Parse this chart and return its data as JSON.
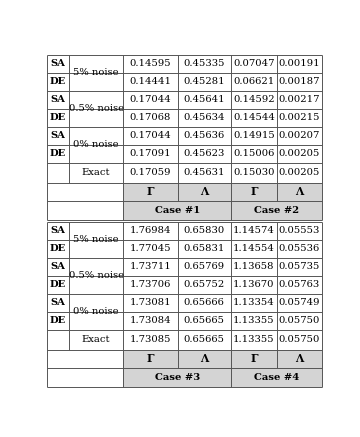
{
  "top_half": {
    "case1_label": "Case #1",
    "case2_label": "Case #2",
    "col_headers": [
      "Γ",
      "Λ",
      "Γ",
      "Λ"
    ],
    "exact_row": [
      "Exact",
      "0.17059",
      "0.45631",
      "0.15030",
      "0.00205"
    ],
    "rows": [
      [
        "DE",
        "0% noise",
        "0.17091",
        "0.45623",
        "0.15006",
        "0.00205"
      ],
      [
        "SA",
        "0% noise",
        "0.17044",
        "0.45636",
        "0.14915",
        "0.00207"
      ],
      [
        "DE",
        "0.5% noise",
        "0.17068",
        "0.45634",
        "0.14544",
        "0.00215"
      ],
      [
        "SA",
        "0.5% noise",
        "0.17044",
        "0.45641",
        "0.14592",
        "0.00217"
      ],
      [
        "DE",
        "5% noise",
        "0.14441",
        "0.45281",
        "0.06621",
        "0.00187"
      ],
      [
        "SA",
        "5% noise",
        "0.14595",
        "0.45335",
        "0.07047",
        "0.00191"
      ]
    ]
  },
  "bottom_half": {
    "case3_label": "Case #3",
    "case4_label": "Case #4",
    "col_headers": [
      "Γ",
      "Λ",
      "Γ",
      "Λ"
    ],
    "exact_row": [
      "Exact",
      "1.73085",
      "0.65665",
      "1.13355",
      "0.05750"
    ],
    "rows": [
      [
        "DE",
        "0% noise",
        "1.73084",
        "0.65665",
        "1.13355",
        "0.05750"
      ],
      [
        "SA",
        "0% noise",
        "1.73081",
        "0.65666",
        "1.13354",
        "0.05749"
      ],
      [
        "DE",
        "0.5% noise",
        "1.73706",
        "0.65752",
        "1.13670",
        "0.05763"
      ],
      [
        "SA",
        "0.5% noise",
        "1.73711",
        "0.65769",
        "1.13658",
        "0.05735"
      ],
      [
        "DE",
        "5% noise",
        "1.77045",
        "0.65831",
        "1.14554",
        "0.05536"
      ],
      [
        "SA",
        "5% noise",
        "1.76984",
        "0.65830",
        "1.14574",
        "0.05553"
      ]
    ]
  },
  "bg_color": "#ffffff",
  "header_bg": "#d4d4d4",
  "line_color": "#555555",
  "font_size": 7.2,
  "lw": 0.7
}
